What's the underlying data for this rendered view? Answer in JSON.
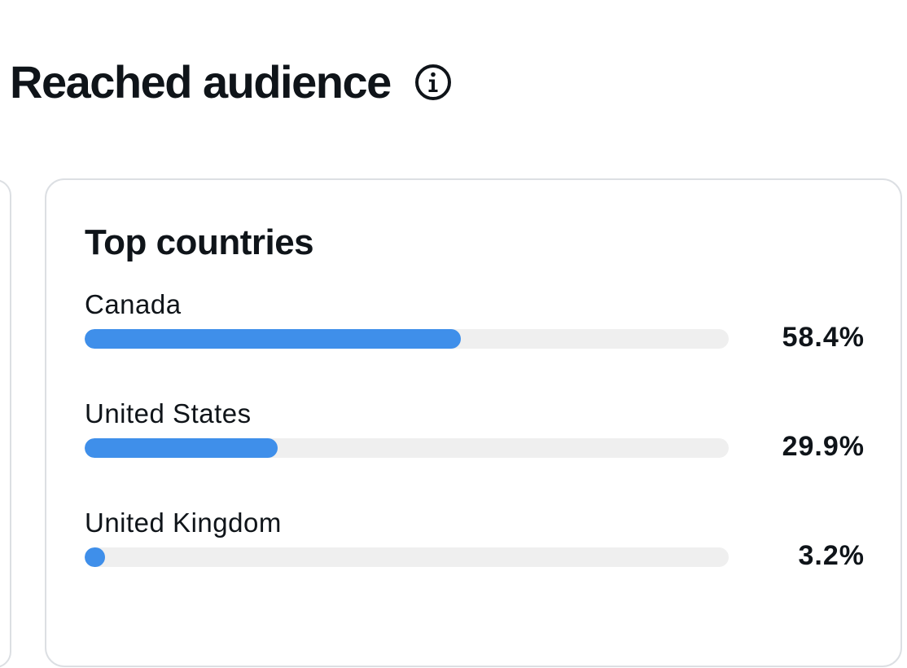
{
  "section": {
    "title": "Reached audience",
    "info_icon": "info-icon"
  },
  "top_countries": {
    "title": "Top countries",
    "items": [
      {
        "name": "Canada",
        "percent_label": "58.4%",
        "percent": 58.4
      },
      {
        "name": "United States",
        "percent_label": "29.9%",
        "percent": 29.9
      },
      {
        "name": "United Kingdom",
        "percent_label": "3.2%",
        "percent": 3.2
      }
    ]
  },
  "colors": {
    "bar_fill": "#3f8fea",
    "bar_track": "#efefef",
    "card_border": "#dcdfe3",
    "text": "#0f1419"
  }
}
